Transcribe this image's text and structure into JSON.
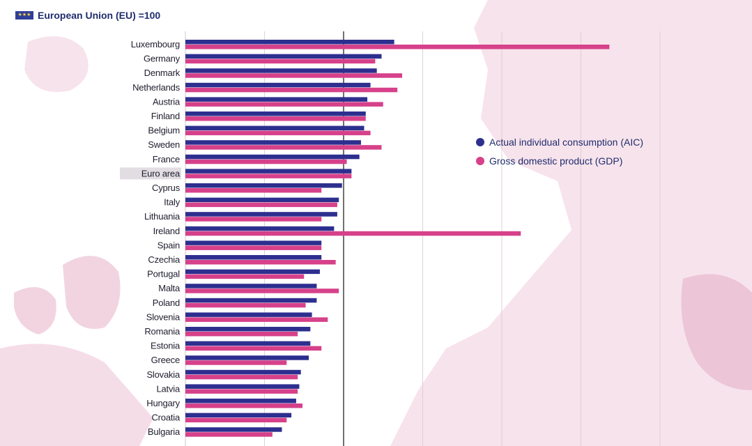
{
  "header": {
    "title": "European Union (EU) =100",
    "flag_icon": "eu-flag-icon"
  },
  "legend": {
    "items": [
      {
        "label": "Actual individual consumption (AIC)",
        "color": "#2d2f8f"
      },
      {
        "label": "Gross domestic product (GDP)",
        "color": "#d6418a"
      }
    ]
  },
  "chart_data": {
    "type": "bar",
    "orientation": "horizontal",
    "title": "European Union (EU) =100",
    "reference_line": 100,
    "xlim": [
      0,
      350
    ],
    "gridlines": [
      50,
      100,
      150,
      200,
      250,
      300
    ],
    "highlight_category": "Euro area",
    "categories": [
      "Luxembourg",
      "Germany",
      "Denmark",
      "Netherlands",
      "Austria",
      "Finland",
      "Belgium",
      "Sweden",
      "France",
      "Euro area",
      "Cyprus",
      "Italy",
      "Lithuania",
      "Ireland",
      "Spain",
      "Czechia",
      "Portugal",
      "Malta",
      "Poland",
      "Slovenia",
      "Romania",
      "Estonia",
      "Greece",
      "Slovakia",
      "Latvia",
      "Hungary",
      "Croatia",
      "Bulgaria"
    ],
    "series": [
      {
        "name": "Actual individual consumption (AIC)",
        "color": "#2d2f8f",
        "values": [
          132,
          124,
          121,
          117,
          115,
          114,
          113,
          111,
          110,
          105,
          99,
          97,
          96,
          94,
          86,
          86,
          85,
          83,
          83,
          80,
          79,
          79,
          78,
          73,
          72,
          70,
          67,
          61
        ]
      },
      {
        "name": "Gross domestic product (GDP)",
        "color": "#d6418a",
        "values": [
          268,
          120,
          137,
          134,
          125,
          114,
          117,
          124,
          102,
          105,
          86,
          96,
          86,
          212,
          86,
          95,
          75,
          97,
          76,
          90,
          71,
          86,
          64,
          71,
          71,
          74,
          64,
          55
        ]
      }
    ]
  }
}
